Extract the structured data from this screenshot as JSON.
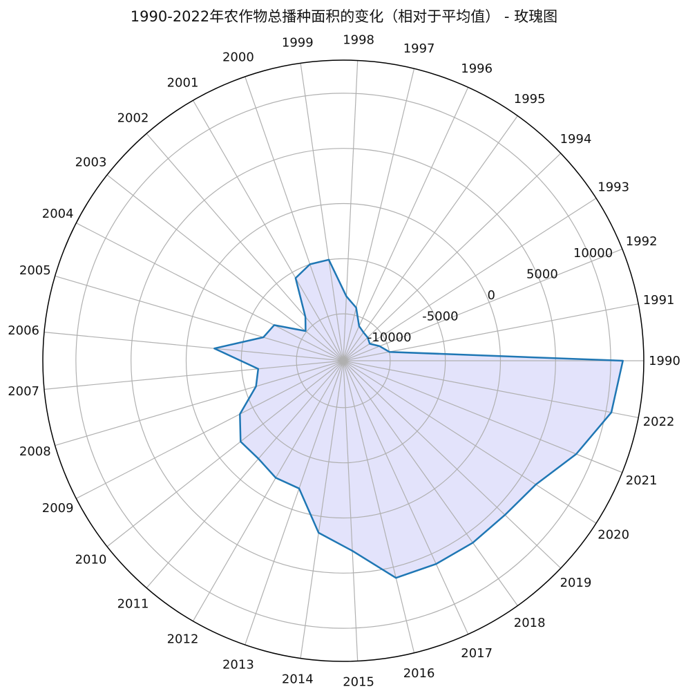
{
  "title": "1990-2022年农作物总播种面积的变化（相对于平均值） - 玫瑰图",
  "chart_data": {
    "type": "radar",
    "title": "1990-2022年农作物总播种面积的变化（相对于平均值） - 玫瑰图",
    "categories": [
      "1990",
      "1991",
      "1992",
      "1993",
      "1994",
      "1995",
      "1996",
      "1997",
      "1998",
      "1999",
      "2000",
      "2001",
      "2002",
      "2003",
      "2004",
      "2005",
      "2006",
      "2007",
      "2008",
      "2009",
      "2010",
      "2011",
      "2012",
      "2013",
      "2014",
      "2015",
      "2016",
      "2017",
      "2018",
      "2019",
      "2020",
      "2021",
      "2022"
    ],
    "values": [
      11100,
      -10000,
      -10700,
      -11400,
      -11200,
      -11100,
      -10800,
      -9300,
      -8400,
      -5000,
      -5000,
      -5600,
      -9000,
      -9900,
      -7200,
      -6700,
      -2500,
      -6500,
      -6000,
      -3700,
      -2400,
      -2500,
      -2000,
      -2000,
      1500,
      3000,
      6000,
      6000,
      6000,
      6000,
      6500,
      8500,
      10500
    ],
    "radial_ticks": [
      -10000,
      -5000,
      0,
      5000,
      10000
    ],
    "rlim": [
      -13000,
      13000
    ],
    "grid": true,
    "colors": {
      "line": "#1f77b4",
      "fill": "#e3e3fb",
      "grid": "#b0b0b0",
      "frame": "#000000"
    }
  }
}
